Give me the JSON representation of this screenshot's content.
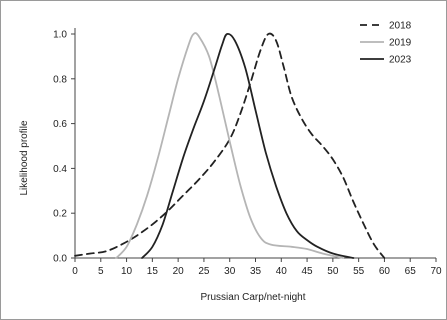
{
  "chart_data": {
    "type": "line",
    "title": "",
    "xlabel": "Prussian Carp/net-night",
    "ylabel": "Likelihood profile",
    "xlim": [
      0,
      70
    ],
    "ylim": [
      0,
      1.0
    ],
    "x_ticks": [
      "0",
      "5",
      "10",
      "15",
      "20",
      "25",
      "30",
      "35",
      "40",
      "45",
      "50",
      "55",
      "60",
      "65",
      "70"
    ],
    "y_ticks": [
      "0.0",
      "0.2",
      "0.4",
      "0.6",
      "0.8",
      "1.0"
    ],
    "grid": false,
    "legend_position": "top-right",
    "series": [
      {
        "name": "2018",
        "style": "dashed",
        "color": "#222222",
        "points": [
          [
            0,
            0.01
          ],
          [
            3,
            0.02
          ],
          [
            6,
            0.03
          ],
          [
            9,
            0.06
          ],
          [
            12,
            0.1
          ],
          [
            15,
            0.15
          ],
          [
            18,
            0.21
          ],
          [
            21,
            0.28
          ],
          [
            24,
            0.35
          ],
          [
            27,
            0.43
          ],
          [
            30,
            0.53
          ],
          [
            32,
            0.64
          ],
          [
            34,
            0.78
          ],
          [
            36,
            0.93
          ],
          [
            37.5,
            1.0
          ],
          [
            39,
            0.97
          ],
          [
            40.5,
            0.85
          ],
          [
            42,
            0.72
          ],
          [
            44,
            0.62
          ],
          [
            46,
            0.55
          ],
          [
            48,
            0.5
          ],
          [
            50,
            0.44
          ],
          [
            52,
            0.36
          ],
          [
            54,
            0.25
          ],
          [
            56,
            0.15
          ],
          [
            58,
            0.06
          ],
          [
            60,
            0.0
          ]
        ]
      },
      {
        "name": "2019",
        "style": "solid",
        "color": "#b5b5b5",
        "points": [
          [
            8,
            0.0
          ],
          [
            10,
            0.05
          ],
          [
            12,
            0.15
          ],
          [
            14,
            0.28
          ],
          [
            16,
            0.44
          ],
          [
            18,
            0.62
          ],
          [
            20,
            0.8
          ],
          [
            22,
            0.95
          ],
          [
            23,
            1.0
          ],
          [
            24,
            0.99
          ],
          [
            26,
            0.9
          ],
          [
            28,
            0.72
          ],
          [
            30,
            0.52
          ],
          [
            32,
            0.33
          ],
          [
            34,
            0.18
          ],
          [
            36,
            0.09
          ],
          [
            38,
            0.06
          ],
          [
            42,
            0.05
          ],
          [
            45,
            0.04
          ],
          [
            48,
            0.02
          ],
          [
            52,
            0.0
          ]
        ]
      },
      {
        "name": "2023",
        "style": "solid",
        "color": "#222222",
        "points": [
          [
            13,
            0.0
          ],
          [
            15,
            0.05
          ],
          [
            17,
            0.15
          ],
          [
            19,
            0.3
          ],
          [
            21,
            0.45
          ],
          [
            23,
            0.58
          ],
          [
            25,
            0.7
          ],
          [
            27,
            0.84
          ],
          [
            28.5,
            0.95
          ],
          [
            29.5,
            1.0
          ],
          [
            31,
            0.97
          ],
          [
            33,
            0.85
          ],
          [
            35,
            0.66
          ],
          [
            37,
            0.47
          ],
          [
            39,
            0.32
          ],
          [
            41,
            0.2
          ],
          [
            43,
            0.12
          ],
          [
            45,
            0.08
          ],
          [
            47,
            0.05
          ],
          [
            50,
            0.02
          ],
          [
            54,
            0.0
          ]
        ]
      }
    ]
  }
}
